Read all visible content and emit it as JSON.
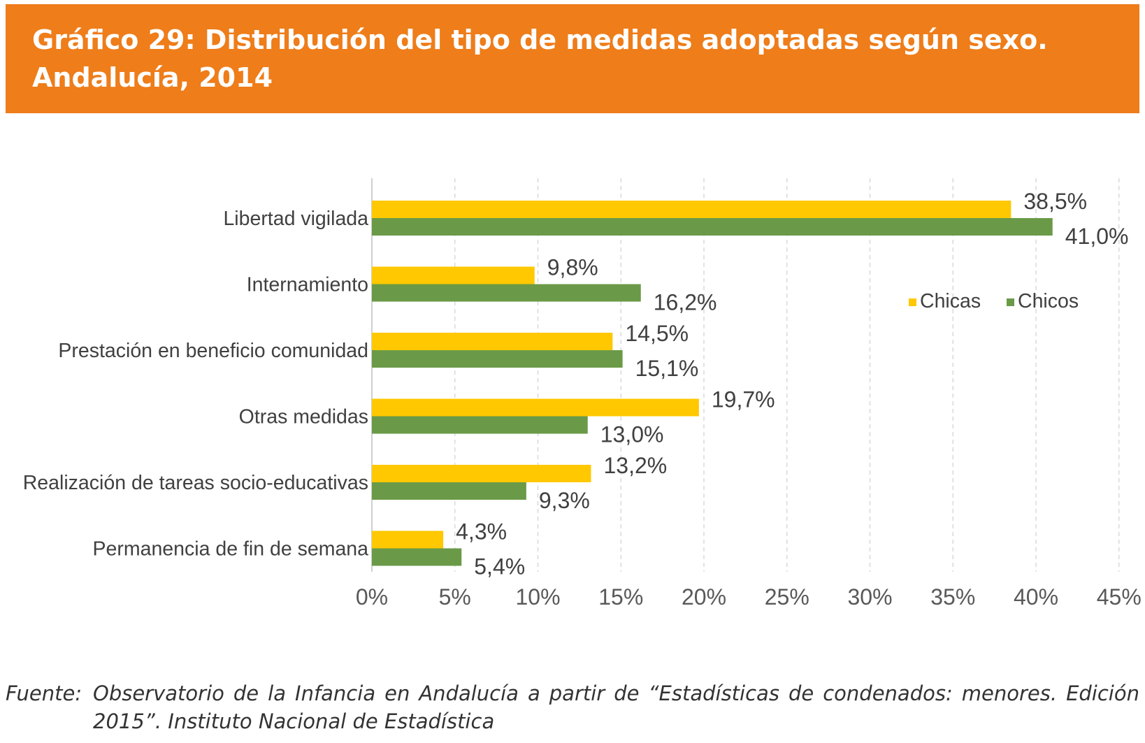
{
  "header": {
    "title_line1": "Gráfico 29: Distribución del tipo de medidas adoptadas según sexo.",
    "title_line2": "Andalucía, 2014",
    "bg_color": "#ee7d1a"
  },
  "chart_data": {
    "type": "bar",
    "orientation": "horizontal",
    "categories": [
      "Libertad vigilada",
      "Internamiento",
      "Prestación en beneficio comunidad",
      "Otras medidas",
      "Realización de tareas socio-educativas",
      "Permanencia de fin de semana"
    ],
    "series": [
      {
        "name": "Chicas",
        "color": "#ffc800",
        "values": [
          38.5,
          9.8,
          14.5,
          19.7,
          13.2,
          4.3
        ],
        "labels": [
          "38,5%",
          "9,8%",
          "14,5%",
          "19,7%",
          "13,2%",
          "4,3%"
        ]
      },
      {
        "name": "Chicos",
        "color": "#6a9a48",
        "values": [
          41.0,
          16.2,
          15.1,
          13.0,
          9.3,
          5.4
        ],
        "labels": [
          "41,0%",
          "16,2%",
          "15,1%",
          "13,0%",
          "9,3%",
          "5,4%"
        ]
      }
    ],
    "xlim": [
      0,
      45
    ],
    "x_ticks": [
      {
        "value": 0,
        "label": "0%"
      },
      {
        "value": 5,
        "label": "5%"
      },
      {
        "value": 10,
        "label": "10%"
      },
      {
        "value": 15,
        "label": "15%"
      },
      {
        "value": 20,
        "label": "20%"
      },
      {
        "value": 25,
        "label": "25%"
      },
      {
        "value": 30,
        "label": "30%"
      },
      {
        "value": 35,
        "label": "35%"
      },
      {
        "value": 40,
        "label": "40%"
      },
      {
        "value": 45,
        "label": "45%"
      }
    ],
    "grid": "vertical dashed",
    "legend_position": "right"
  },
  "footer": {
    "source_label": "Fuente:",
    "source_text": "Observatorio de la Infancia en Andalucía a partir de “Estadísticas de condenados: menores. Edición 2015”. Instituto Nacional de Estadística"
  }
}
